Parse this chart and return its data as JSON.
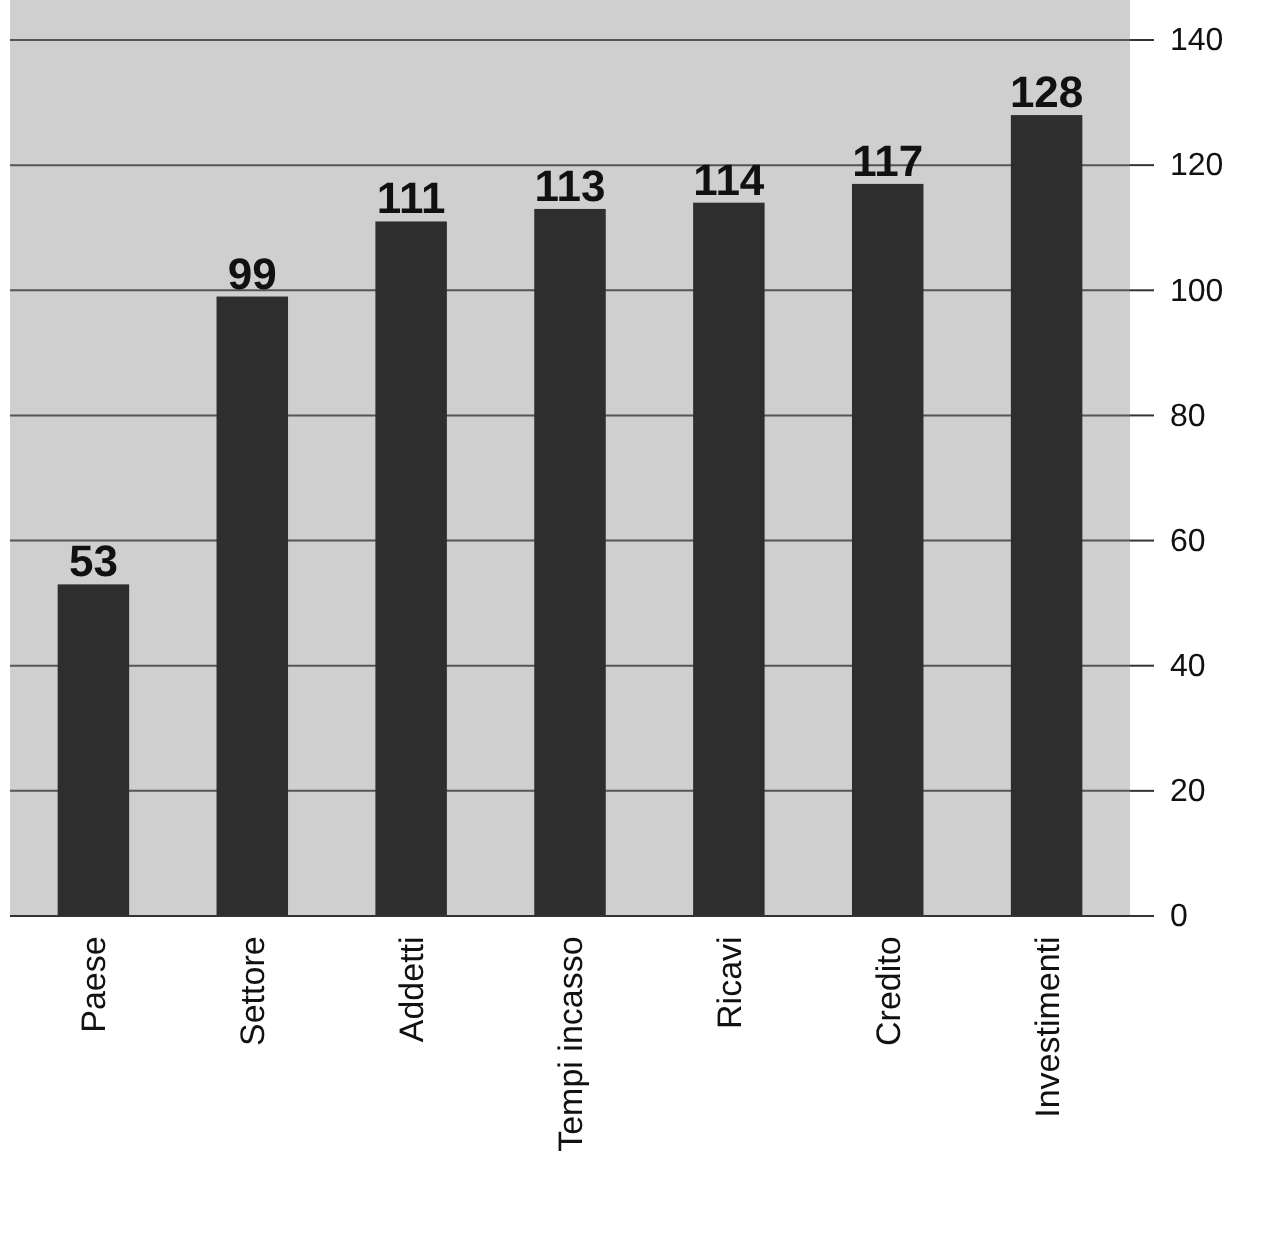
{
  "chart_data": {
    "type": "bar",
    "categories": [
      "Paese",
      "Settore",
      "Addetti",
      "Tempi incasso",
      "Ricavi",
      "Credito",
      "Investimenti"
    ],
    "values": [
      53,
      99,
      111,
      113,
      114,
      117,
      128
    ],
    "color": "#2e2e2e",
    "ylim": [
      0,
      140
    ],
    "yticks": [
      0,
      20,
      40,
      60,
      80,
      100,
      120,
      140
    ],
    "grid": "y",
    "data_labels": true
  }
}
